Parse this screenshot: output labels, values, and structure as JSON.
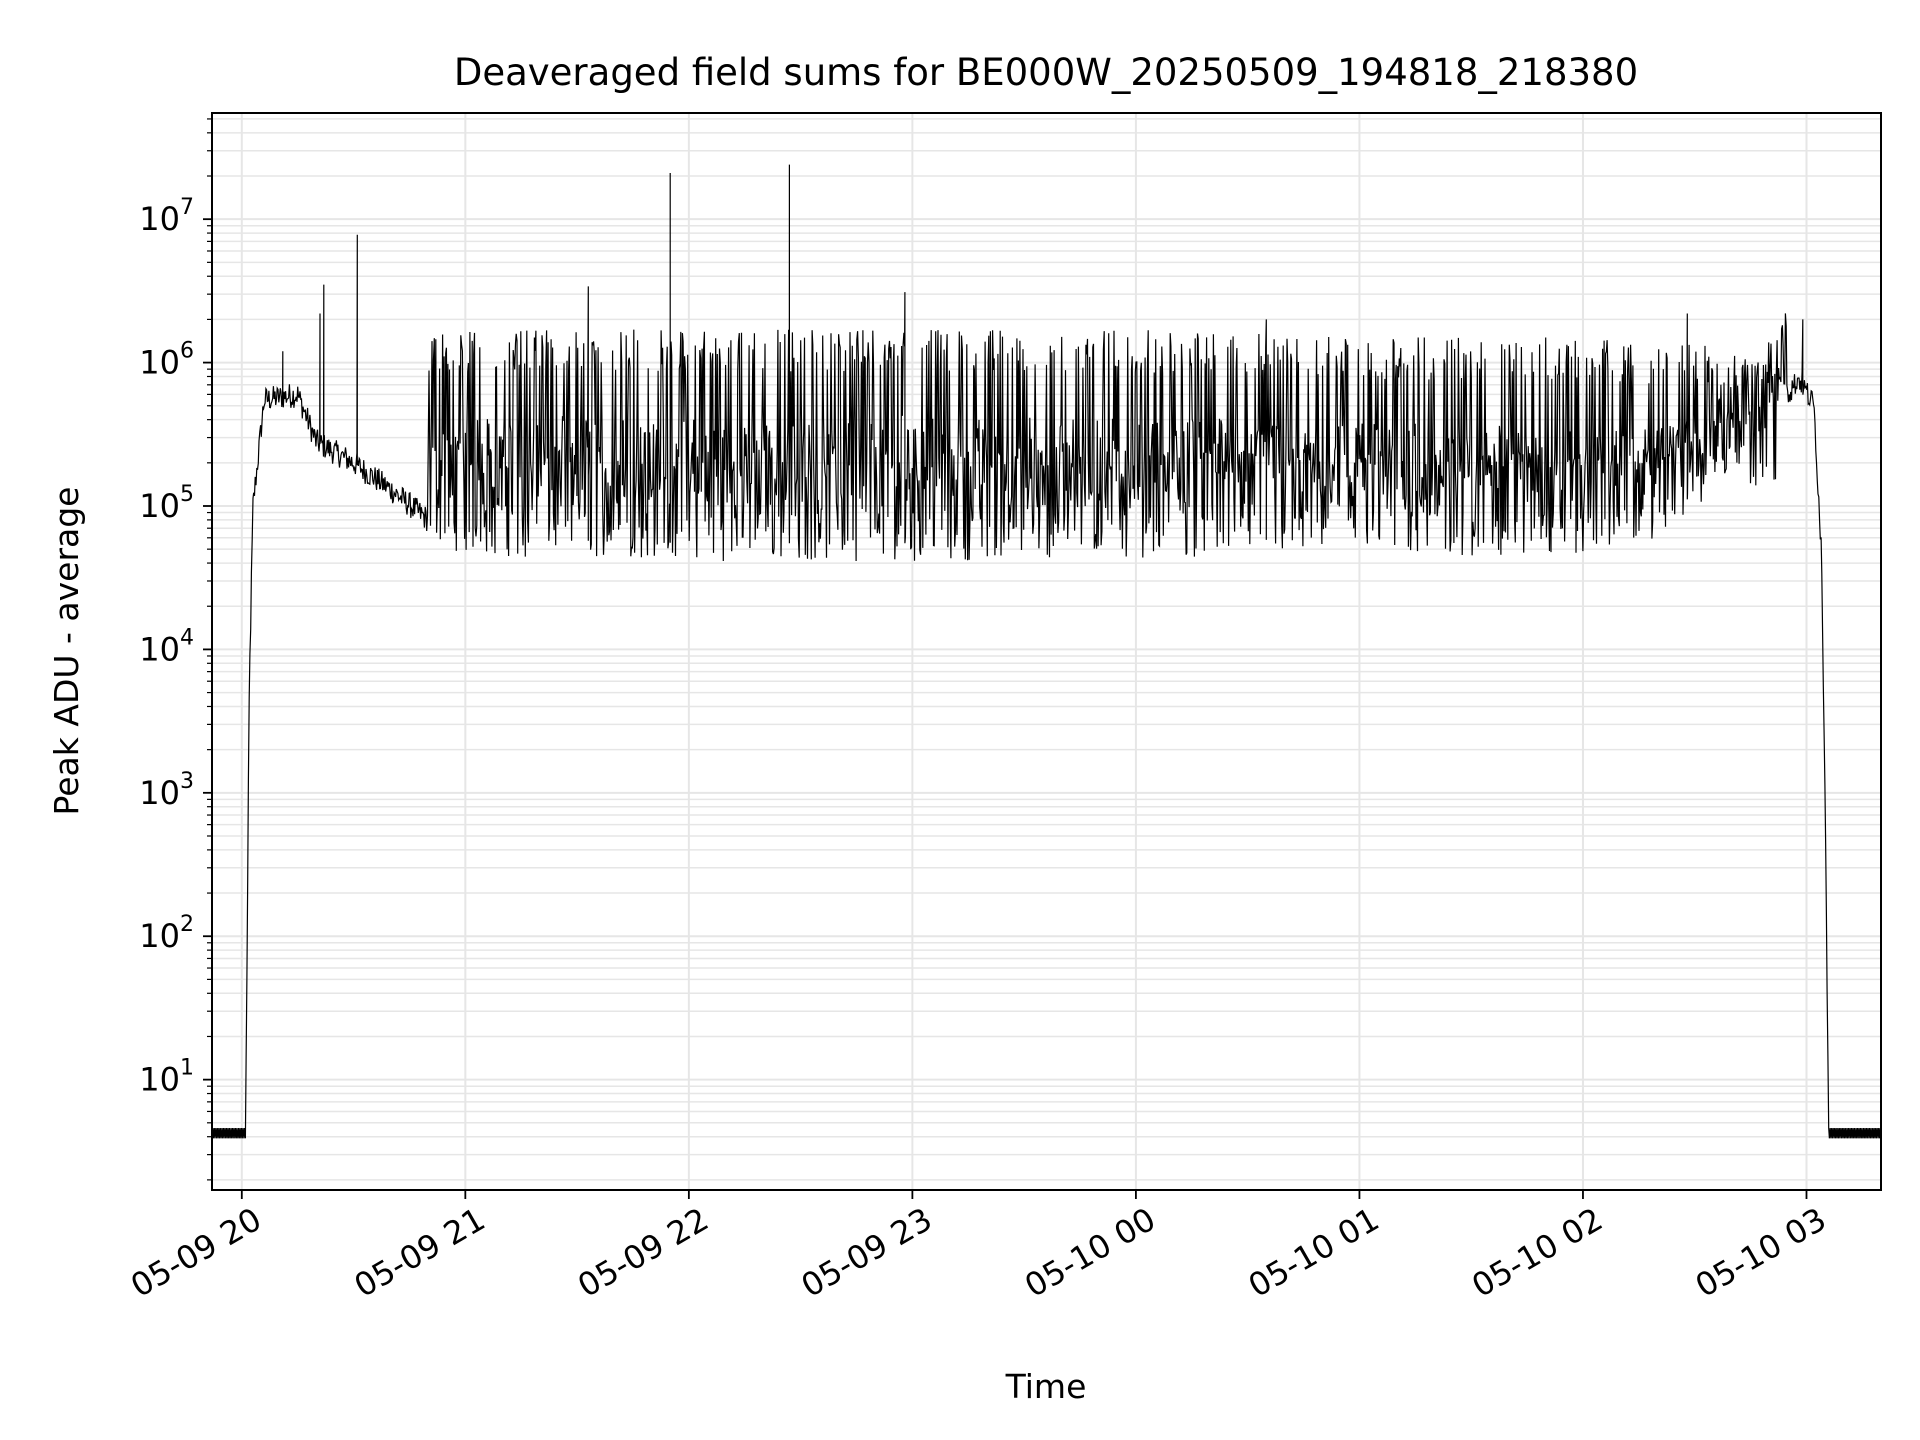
{
  "chart_data": {
    "type": "line",
    "title": "Deaveraged field sums for BE000W_20250509_194818_218380",
    "xlabel": "Time",
    "ylabel": "Peak ADU - average",
    "y_scale": "log",
    "grid": true,
    "line_color": "#000000",
    "grid_color": "#e6e6e6",
    "xlim": [
      "2025-05-09 19:52",
      "2025-05-10 03:20"
    ],
    "ylim": [
      1.7,
      55000000
    ],
    "x_ticks": [
      "2025-05-09 20:00",
      "2025-05-09 21:00",
      "2025-05-09 22:00",
      "2025-05-09 23:00",
      "2025-05-10 00:00",
      "2025-05-10 01:00",
      "2025-05-10 02:00",
      "2025-05-10 03:00"
    ],
    "x_tick_labels": [
      "05-09 20",
      "05-09 21",
      "05-09 22",
      "05-09 23",
      "05-10 00",
      "05-10 01",
      "05-10 02",
      "05-10 03"
    ],
    "y_ticks": [
      10,
      100,
      1000,
      10000,
      100000,
      1000000,
      10000000
    ],
    "y_tick_labels": [
      {
        "base": "10",
        "exp": "1"
      },
      {
        "base": "10",
        "exp": "2"
      },
      {
        "base": "10",
        "exp": "3"
      },
      {
        "base": "10",
        "exp": "4"
      },
      {
        "base": "10",
        "exp": "5"
      },
      {
        "base": "10",
        "exp": "6"
      },
      {
        "base": "10",
        "exp": "7"
      }
    ],
    "series": [
      {
        "description": "envelope of a dense noisy trace; oscillates between low and high values",
        "low_envelope": [
          [
            "2025-05-09 19:52",
            4
          ],
          [
            "2025-05-09 20:01",
            4
          ],
          [
            "2025-05-09 20:02",
            5000
          ],
          [
            "2025-05-09 20:03",
            100000
          ],
          [
            "2025-05-09 20:06",
            550000
          ],
          [
            "2025-05-09 20:15",
            600000
          ],
          [
            "2025-05-09 20:20",
            280000
          ],
          [
            "2025-05-09 20:30",
            200000
          ],
          [
            "2025-05-09 20:40",
            130000
          ],
          [
            "2025-05-09 20:50",
            80000
          ],
          [
            "2025-05-09 21:00",
            60000
          ],
          [
            "2025-05-09 22:00",
            55000
          ],
          [
            "2025-05-09 23:00",
            55000
          ],
          [
            "2025-05-10 00:00",
            58000
          ],
          [
            "2025-05-10 01:00",
            58000
          ],
          [
            "2025-05-10 02:00",
            60000
          ],
          [
            "2025-05-10 02:20",
            80000
          ],
          [
            "2025-05-10 02:35",
            150000
          ],
          [
            "2025-05-10 02:50",
            400000
          ],
          [
            "2025-05-10 02:58",
            780000
          ],
          [
            "2025-05-10 03:02",
            500000
          ],
          [
            "2025-05-10 03:04",
            50000
          ],
          [
            "2025-05-10 03:05",
            1000
          ],
          [
            "2025-05-10 03:06",
            4
          ],
          [
            "2025-05-10 03:20",
            4
          ]
        ],
        "high_envelope": [
          [
            "2025-05-09 20:50",
            1700000
          ],
          [
            "2025-05-10 00:00",
            1700000
          ],
          [
            "2025-05-10 01:00",
            1500000
          ],
          [
            "2025-05-10 02:00",
            1500000
          ],
          [
            "2025-05-10 02:40",
            1300000
          ],
          [
            "2025-05-10 02:55",
            800000
          ]
        ],
        "spikes": [
          [
            "2025-05-09 20:11",
            1200000
          ],
          [
            "2025-05-09 20:21",
            2200000
          ],
          [
            "2025-05-09 20:22",
            3500000
          ],
          [
            "2025-05-09 20:31",
            7800000
          ],
          [
            "2025-05-09 21:33",
            3400000
          ],
          [
            "2025-05-09 21:55",
            21000000
          ],
          [
            "2025-05-09 22:27",
            24000000
          ],
          [
            "2025-05-09 22:58",
            3100000
          ],
          [
            "2025-05-10 00:35",
            2000000
          ],
          [
            "2025-05-10 02:28",
            2200000
          ],
          [
            "2025-05-10 02:59",
            2000000
          ]
        ]
      }
    ]
  }
}
